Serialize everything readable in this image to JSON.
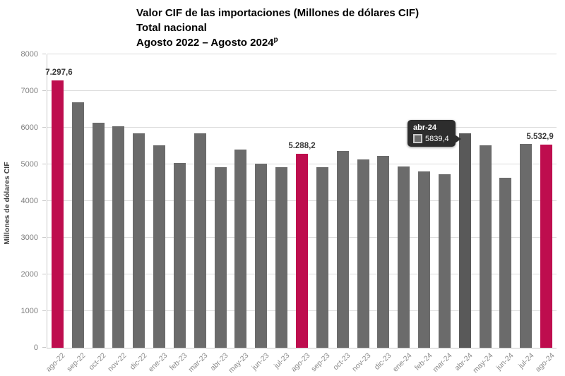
{
  "header": {
    "title_line1": "Valor CIF de las importaciones (Millones de dólares CIF)",
    "title_line2": "Total nacional",
    "title_line3": "Agosto 2022 – Agosto 2024",
    "title_line3_superscript": "p"
  },
  "chart_data": {
    "type": "bar",
    "title": "Valor CIF de las importaciones (Millones de dólares CIF) — Total nacional — Agosto 2022 – Agosto 2024p",
    "ylabel": "Millones de dólares CIF",
    "xlabel": "",
    "ylim": [
      0,
      8000
    ],
    "ytick_step": 1000,
    "yticks": [
      "0",
      "1000",
      "2000",
      "3000",
      "4000",
      "5000",
      "6000",
      "7000",
      "8000"
    ],
    "grid": true,
    "legend": "none",
    "categories": [
      "ago-22",
      "sep-22",
      "oct-22",
      "nov-22",
      "dic-22",
      "ene-23",
      "feb-23",
      "mar-23",
      "abr-23",
      "may-23",
      "jun-23",
      "jul-23",
      "ago-23",
      "sep-23",
      "oct-23",
      "nov-23",
      "dic-23",
      "ene-24",
      "feb-24",
      "mar-24",
      "abr-24",
      "may-24",
      "jun-24",
      "jul-24",
      "ago-24"
    ],
    "values": [
      7297.6,
      6690,
      6130,
      6040,
      5850,
      5520,
      5040,
      5840,
      4930,
      5400,
      5010,
      4930,
      5288.2,
      4930,
      5370,
      5140,
      5230,
      4940,
      4800,
      4740,
      5839.4,
      5520,
      4640,
      5560,
      5532.9
    ],
    "highlight_indices": [
      0,
      12,
      24
    ],
    "hover_index": 20,
    "annotations": [
      {
        "index": 0,
        "category": "ago-22",
        "text": "7.297,6",
        "dx": 2
      },
      {
        "index": 12,
        "category": "ago-23",
        "text": "5.288,2",
        "dx": 0
      },
      {
        "index": 24,
        "category": "ago-24",
        "text": "5.532,9",
        "dx": -9
      }
    ],
    "tooltip": {
      "title": "abr-24",
      "value": "5839,4",
      "category_index": 20
    },
    "colors": {
      "bar_default": "#6B6B6B",
      "bar_highlight": "#BE0D4E",
      "bar_hover": "#595959",
      "gridline": "#DCDCDC",
      "axis_line": "#C9C9C9",
      "tick_text": "#7F7F7F",
      "annotation_text": "#3A3A3A",
      "title_text": "#000000",
      "tooltip_bg": "#2D2D2D",
      "tooltip_text": "#FFFFFF"
    }
  }
}
